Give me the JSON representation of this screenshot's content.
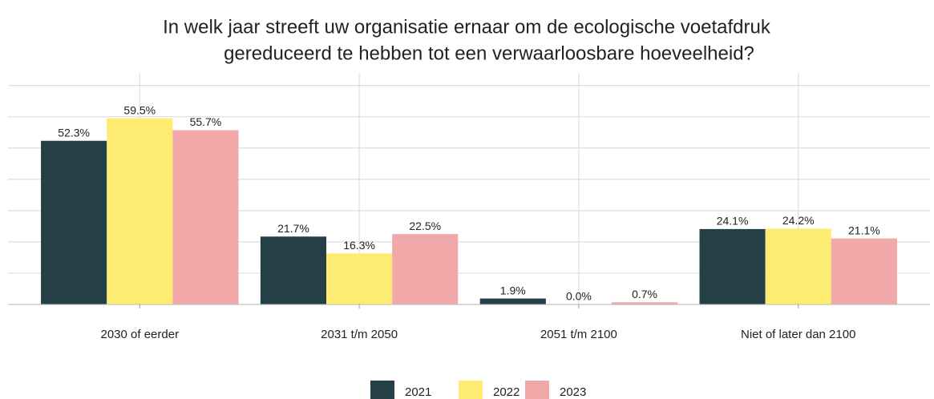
{
  "chart_data": {
    "type": "bar",
    "title": [
      "In welk jaar streeft uw organisatie ernaar om de ecologische voetafdruk",
      "gereduceerd te hebben tot een verwaarloosbare hoeveelheid?"
    ],
    "categories": [
      "2030 of eerder",
      "2031 t/m 2050",
      "2051 t/m 2100",
      "Niet of later dan 2100"
    ],
    "series": [
      {
        "name": "2021",
        "color": "#253f47",
        "values": [
          52.3,
          21.7,
          1.9,
          24.1
        ],
        "value_labels": [
          "52.3%",
          "21.7%",
          "1.9%",
          "24.1%"
        ]
      },
      {
        "name": "2022",
        "color": "#fdeb72",
        "values": [
          59.5,
          16.3,
          0.0,
          24.2
        ],
        "value_labels": [
          "59.5%",
          "16.3%",
          "0.0%",
          "24.2%"
        ]
      },
      {
        "name": "2023",
        "color": "#f0a8a8",
        "values": [
          55.7,
          22.5,
          0.7,
          21.1
        ],
        "value_labels": [
          "55.7%",
          "22.5%",
          "0.7%",
          "21.1%"
        ]
      }
    ],
    "ylim": [
      0,
      74
    ],
    "yticks": [
      0,
      10,
      20,
      30,
      40,
      50,
      60,
      70
    ],
    "grid": true,
    "legend": "bottom"
  }
}
